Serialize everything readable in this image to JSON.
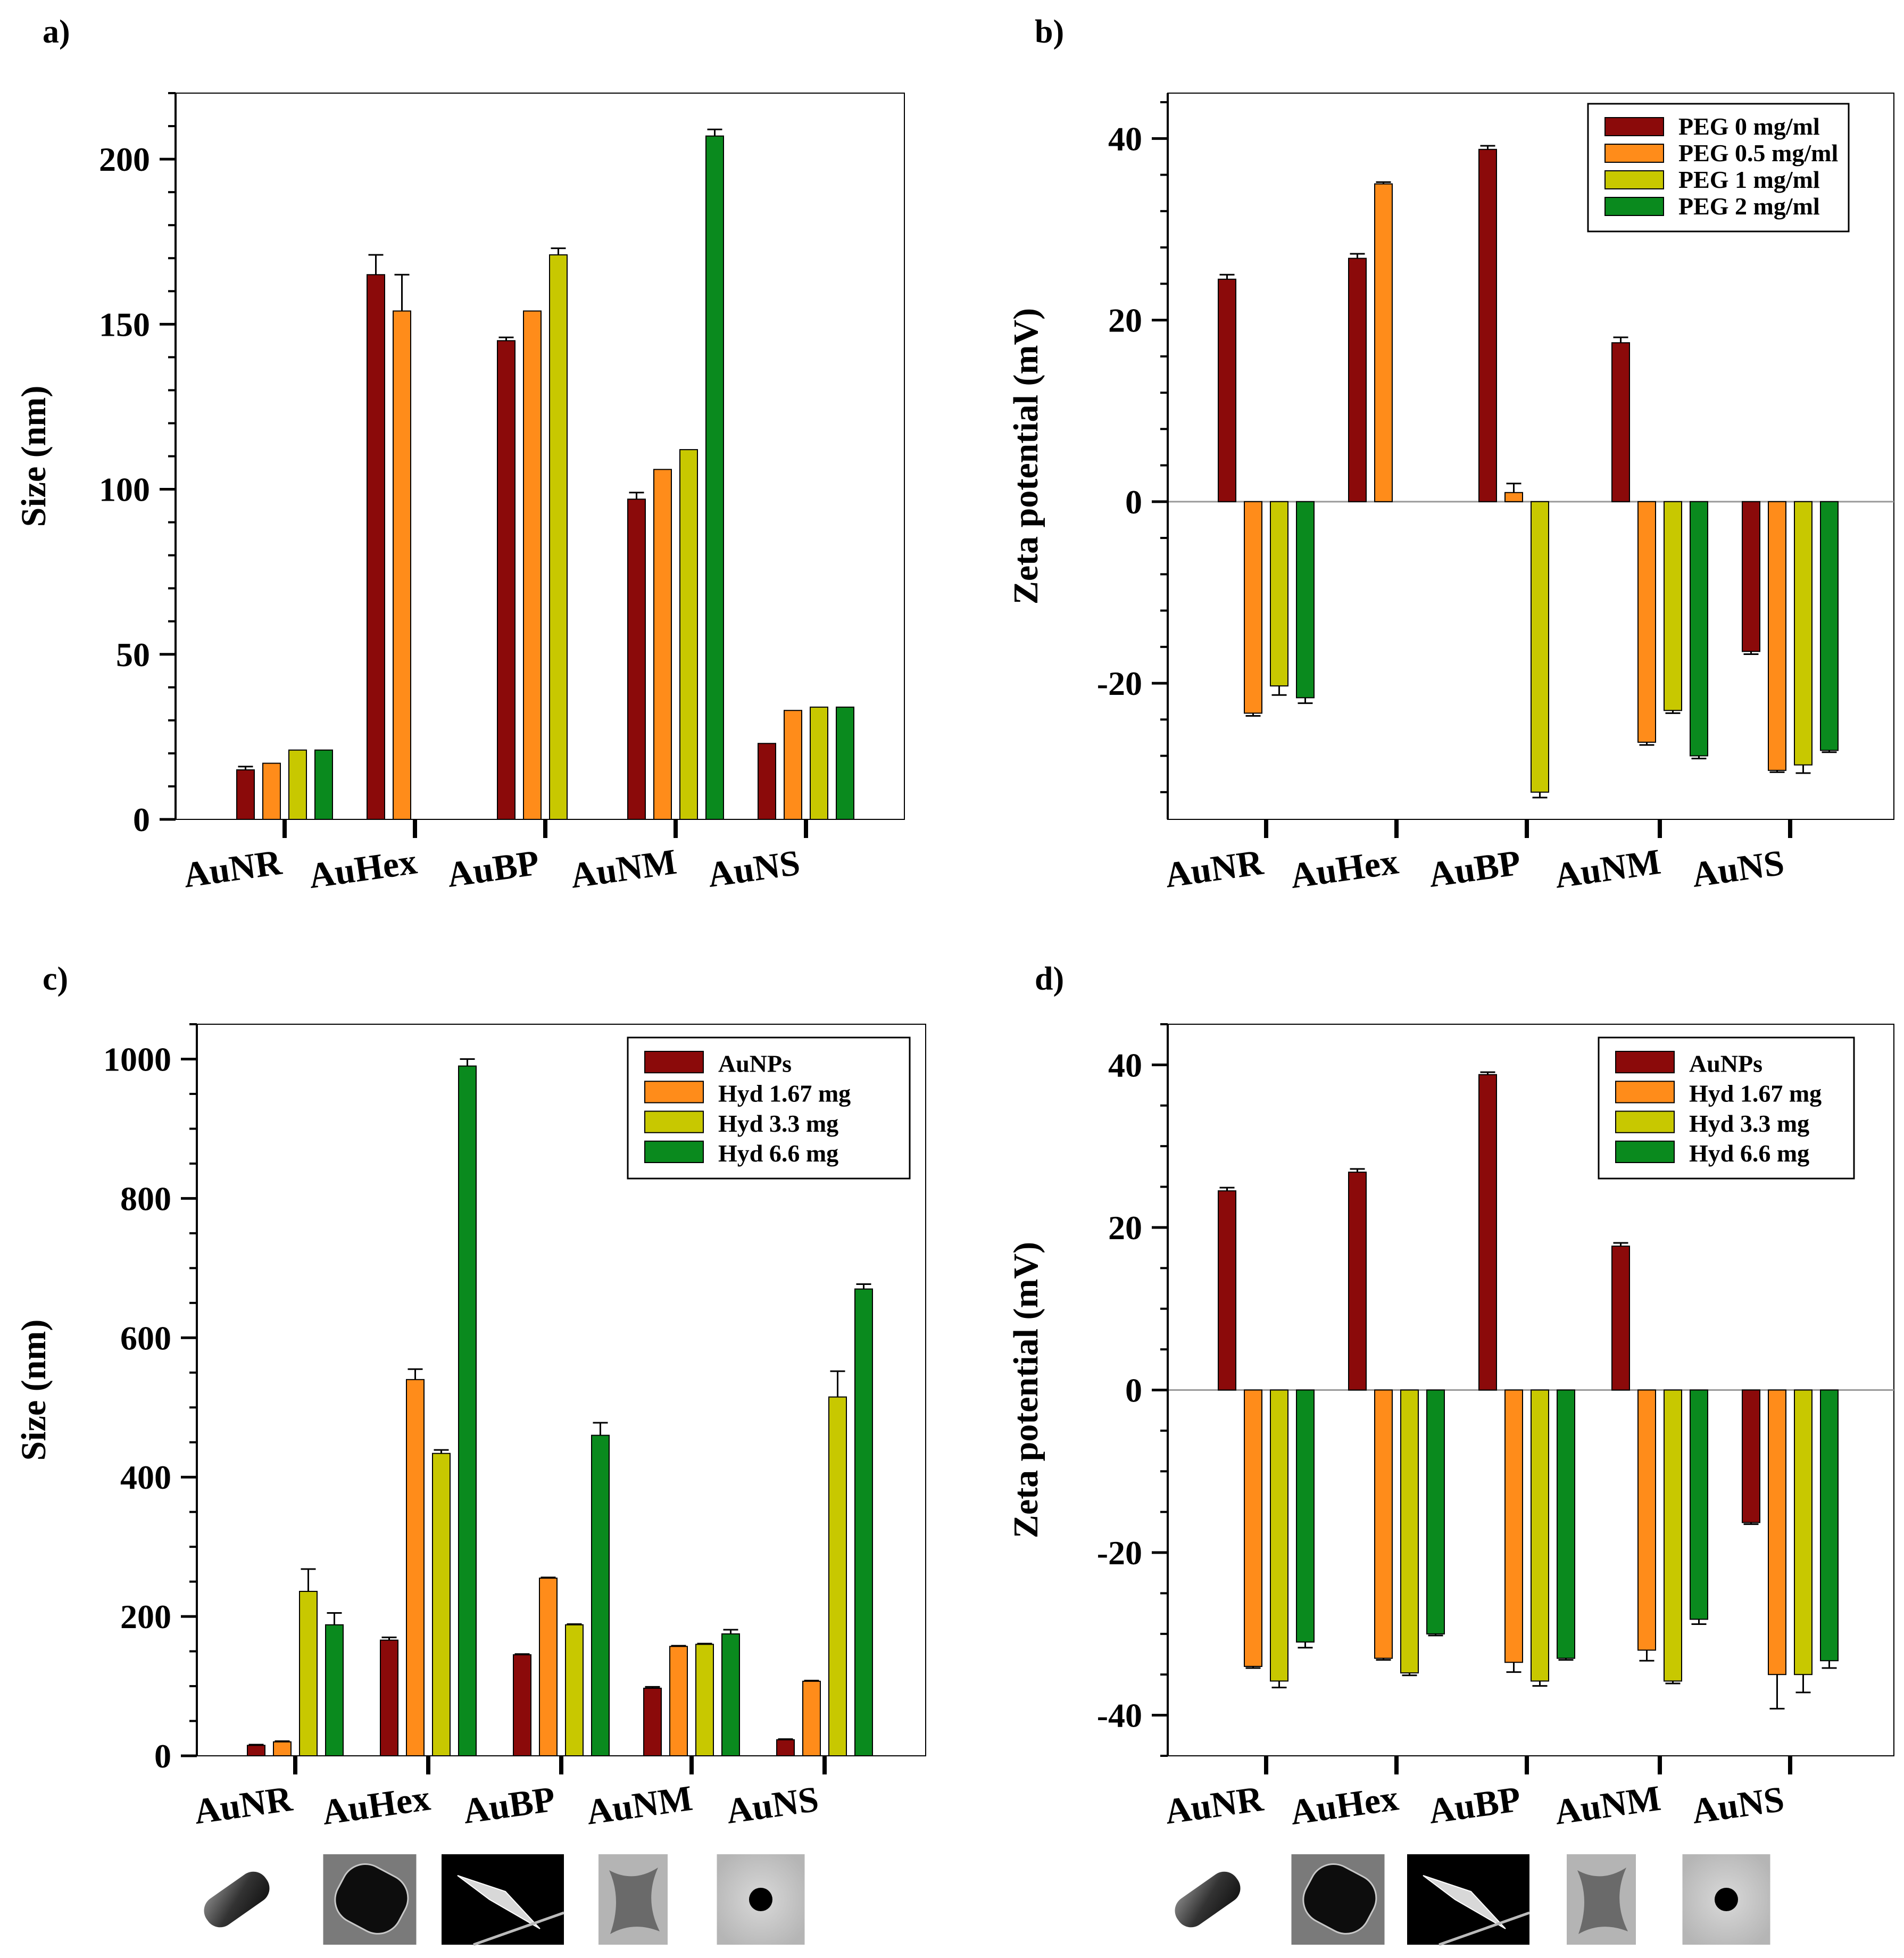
{
  "colors": {
    "series_a": "#8B0A0A",
    "series_b": "#FF8C1A",
    "series_c": "#C8C800",
    "series_d": "#0A8A1E",
    "axis": "#000000",
    "zero_line": "#999999"
  },
  "chart_data": [
    {
      "panel": "a)",
      "type": "bar",
      "ylabel": "Size (nm)",
      "ylim": [
        0,
        220
      ],
      "yticks": [
        0,
        50,
        100,
        150,
        200
      ],
      "minor_step": 10,
      "categories": [
        "AuNR",
        "AuHex",
        "AuBP",
        "AuNM",
        "AuNS"
      ],
      "series": [
        {
          "name": "PEG 0 mg/ml",
          "color": "series_a",
          "values": [
            15,
            165,
            145,
            97,
            23
          ],
          "errors": [
            1,
            6,
            1,
            2,
            0
          ]
        },
        {
          "name": "PEG 0.5 mg/ml",
          "color": "series_b",
          "values": [
            17,
            154,
            154,
            106,
            33
          ],
          "errors": [
            0,
            11,
            0,
            0,
            0
          ]
        },
        {
          "name": "PEG 1 mg/ml",
          "color": "series_c",
          "values": [
            21,
            null,
            171,
            112,
            34
          ],
          "errors": [
            0,
            0,
            2,
            0,
            0
          ]
        },
        {
          "name": "PEG 2 mg/ml",
          "color": "series_d",
          "values": [
            21,
            null,
            null,
            207,
            34
          ],
          "errors": [
            0,
            0,
            0,
            2,
            0
          ]
        }
      ],
      "legend": null,
      "thumbnails": false
    },
    {
      "panel": "b)",
      "type": "bar",
      "ylabel": "Zeta potential (mV)",
      "ylim": [
        -35,
        45
      ],
      "yticks": [
        -20,
        0,
        20,
        40
      ],
      "minor_step": 4,
      "categories": [
        "AuNR",
        "AuHex",
        "AuBP",
        "AuNM",
        "AuNS"
      ],
      "series": [
        {
          "name": "PEG 0 mg/ml",
          "color": "series_a",
          "values": [
            24.5,
            26.8,
            38.8,
            17.5,
            -16.5
          ],
          "errors": [
            0.5,
            0.5,
            0.4,
            0.6,
            0.3
          ]
        },
        {
          "name": "PEG 0.5 mg/ml",
          "color": "series_b",
          "values": [
            -23.3,
            35,
            1,
            -26.5,
            -29.6
          ],
          "errors": [
            0.3,
            0.2,
            1,
            0.3,
            0.2
          ]
        },
        {
          "name": "PEG 1 mg/ml",
          "color": "series_c",
          "values": [
            -20.3,
            null,
            -32,
            -23,
            -29
          ],
          "errors": [
            1,
            0,
            0.6,
            0.3,
            0.9
          ]
        },
        {
          "name": "PEG 2 mg/ml",
          "color": "series_d",
          "values": [
            -21.6,
            null,
            null,
            -28,
            -27.4
          ],
          "errors": [
            0.6,
            0,
            0,
            0.3,
            0.2
          ]
        }
      ],
      "legend": "top-right",
      "thumbnails": false
    },
    {
      "panel": "c)",
      "type": "bar",
      "ylabel": "Size (nm)",
      "ylim": [
        0,
        1050
      ],
      "yticks": [
        0,
        200,
        400,
        600,
        800,
        1000
      ],
      "minor_step": 50,
      "categories": [
        "AuNR",
        "AuHex",
        "AuBP",
        "AuNM",
        "AuNS"
      ],
      "series": [
        {
          "name": "AuNPs",
          "color": "series_a",
          "values": [
            15,
            166,
            145,
            97,
            23
          ],
          "errors": [
            1,
            4,
            1,
            2,
            1
          ]
        },
        {
          "name": "Hyd 1.67 mg",
          "color": "series_b",
          "values": [
            20,
            540,
            255,
            157,
            107
          ],
          "errors": [
            1,
            15,
            1,
            1,
            1
          ]
        },
        {
          "name": "Hyd 3.3 mg",
          "color": "series_c",
          "values": [
            236,
            434,
            188,
            160,
            515
          ],
          "errors": [
            32,
            5,
            1,
            1,
            37
          ]
        },
        {
          "name": "Hyd 6.6 mg",
          "color": "series_d",
          "values": [
            188,
            990,
            460,
            175,
            670
          ],
          "errors": [
            17,
            10,
            18,
            6,
            7
          ]
        }
      ],
      "legend": "top-right",
      "thumbnails": true
    },
    {
      "panel": "d)",
      "type": "bar",
      "ylabel": "Zeta potential (mV)",
      "ylim": [
        -45,
        45
      ],
      "yticks": [
        -40,
        -20,
        0,
        20,
        40
      ],
      "minor_step": 5,
      "categories": [
        "AuNR",
        "AuHex",
        "AuBP",
        "AuNM",
        "AuNS"
      ],
      "series": [
        {
          "name": "AuNPs",
          "color": "series_a",
          "values": [
            24.5,
            26.8,
            38.8,
            17.7,
            -16.3
          ],
          "errors": [
            0.4,
            0.4,
            0.3,
            0.4,
            0.2
          ]
        },
        {
          "name": "Hyd 1.67 mg",
          "color": "series_b",
          "values": [
            -34,
            -33,
            -33.5,
            -32,
            -35
          ],
          "errors": [
            0.2,
            0.2,
            1.2,
            1.3,
            4.2
          ]
        },
        {
          "name": "Hyd 3.3 mg",
          "color": "series_c",
          "values": [
            -35.8,
            -34.8,
            -35.8,
            -35.8,
            -35
          ],
          "errors": [
            0.8,
            0.3,
            0.6,
            0.3,
            2.2
          ]
        },
        {
          "name": "Hyd 6.6 mg",
          "color": "series_d",
          "values": [
            -31,
            -30,
            -33,
            -28.2,
            -33.3
          ],
          "errors": [
            0.7,
            0.2,
            0.2,
            0.6,
            0.9
          ]
        }
      ],
      "legend": "top-right",
      "thumbnails": true
    }
  ]
}
